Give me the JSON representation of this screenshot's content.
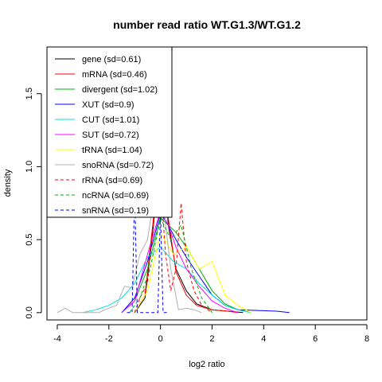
{
  "chart_data": {
    "type": "line",
    "title": "number read ratio WT.G1.3/WT.G1.2",
    "xlabel": "log2 ratio",
    "ylabel": "density",
    "xlim": [
      -4.4,
      8.0
    ],
    "ylim": [
      -0.05,
      1.82
    ],
    "x_ticks": [
      "-4",
      "-2",
      "0",
      "2",
      "4",
      "6",
      "8"
    ],
    "y_ticks": [
      "0.0",
      "0.5",
      "1.0",
      "1.5"
    ],
    "legend_position": "top-left",
    "series": [
      {
        "name": "gene (sd=0.61)",
        "color": "#000000",
        "dashed": false,
        "x": [
          -1.0,
          -0.6,
          -0.3,
          -0.1,
          0.1,
          0.3,
          0.6,
          1.0,
          1.4,
          2.0,
          2.6,
          3.2
        ],
        "y": [
          0.0,
          0.1,
          0.55,
          0.9,
          1.15,
          0.6,
          0.3,
          0.15,
          0.06,
          0.02,
          0.01,
          0.0
        ]
      },
      {
        "name": "mRNA (sd=0.46)",
        "color": "#ff0000",
        "dashed": false,
        "x": [
          -1.0,
          -0.6,
          -0.3,
          -0.1,
          0.1,
          0.3,
          0.6,
          1.0,
          1.4,
          2.0,
          2.6,
          3.0
        ],
        "y": [
          0.0,
          0.12,
          0.6,
          0.95,
          1.2,
          0.65,
          0.28,
          0.12,
          0.05,
          0.02,
          0.01,
          0.0
        ]
      },
      {
        "name": "divergent (sd=1.02)",
        "color": "#00b000",
        "dashed": false,
        "x": [
          -1.5,
          -1.0,
          -0.5,
          0.0,
          0.3,
          0.6,
          1.0,
          1.5,
          2.0,
          2.5,
          3.0,
          3.5
        ],
        "y": [
          0.0,
          0.08,
          0.3,
          0.65,
          0.6,
          0.55,
          0.45,
          0.3,
          0.15,
          0.06,
          0.02,
          0.0
        ]
      },
      {
        "name": "XUT (sd=0.9)",
        "color": "#0000ff",
        "dashed": false,
        "x": [
          -1.5,
          -1.0,
          -0.5,
          0.0,
          0.3,
          0.6,
          1.0,
          1.5,
          2.0,
          2.5,
          3.0,
          4.5,
          5.0
        ],
        "y": [
          0.0,
          0.1,
          0.35,
          0.68,
          0.6,
          0.5,
          0.38,
          0.25,
          0.12,
          0.05,
          0.02,
          0.01,
          0.0
        ]
      },
      {
        "name": "CUT (sd=1.01)",
        "color": "#00e0e0",
        "dashed": false,
        "x": [
          -3.0,
          -2.5,
          -2.0,
          -1.5,
          -1.0,
          -0.5,
          0.0,
          0.5,
          1.0,
          1.5,
          2.0,
          2.5,
          3.0,
          3.5
        ],
        "y": [
          0.0,
          0.02,
          0.05,
          0.1,
          0.2,
          0.38,
          0.45,
          0.35,
          0.3,
          0.2,
          0.12,
          0.05,
          0.02,
          0.0
        ]
      },
      {
        "name": "SUT (sd=0.72)",
        "color": "#ff00ff",
        "dashed": false,
        "x": [
          -1.5,
          -1.0,
          -0.5,
          0.0,
          0.3,
          0.6,
          1.0,
          1.5,
          2.0,
          2.5,
          3.0
        ],
        "y": [
          0.0,
          0.08,
          0.4,
          0.7,
          0.6,
          0.45,
          0.3,
          0.18,
          0.08,
          0.03,
          0.0
        ]
      },
      {
        "name": "tRNA (sd=1.04)",
        "color": "#ffff00",
        "dashed": false,
        "x": [
          -1.0,
          -0.5,
          0.0,
          0.5,
          1.0,
          1.5,
          2.0,
          2.5,
          3.0,
          3.5
        ],
        "y": [
          0.0,
          0.15,
          0.55,
          0.4,
          0.45,
          0.3,
          0.35,
          0.12,
          0.05,
          0.0
        ]
      },
      {
        "name": "snoRNA (sd=0.72)",
        "color": "#b0b0b0",
        "dashed": false,
        "x": [
          -4.0,
          -3.7,
          -3.4,
          -3.0,
          -2.7,
          -2.4,
          -2.0,
          -1.7,
          -1.4,
          -1.1,
          -0.8,
          -0.5,
          -0.2,
          0.1,
          0.4,
          0.7,
          1.0,
          1.3,
          1.6
        ],
        "y": [
          0.0,
          0.03,
          0.0,
          0.0,
          0.0,
          0.0,
          0.03,
          0.05,
          0.18,
          0.17,
          0.4,
          0.5,
          0.85,
          0.75,
          0.3,
          0.02,
          0.03,
          0.02,
          0.0
        ]
      },
      {
        "name": "rRNA (sd=0.69)",
        "color": "#ff0000",
        "dashed": true,
        "x": [
          -1.0,
          -0.8,
          -0.5,
          -0.2,
          0.0,
          0.2,
          0.4,
          0.6,
          0.8,
          1.0,
          1.3,
          1.6,
          2.0
        ],
        "y": [
          0.0,
          0.1,
          0.2,
          0.75,
          0.9,
          0.4,
          0.15,
          0.3,
          0.75,
          0.35,
          0.15,
          0.05,
          0.0
        ]
      },
      {
        "name": "ncRNA (sd=0.69)",
        "color": "#00b000",
        "dashed": true,
        "x": [
          -1.2,
          -0.8,
          -0.4,
          0.0,
          0.4,
          0.8,
          1.2,
          1.6,
          2.0
        ],
        "y": [
          0.0,
          0.1,
          0.3,
          0.65,
          0.5,
          0.6,
          0.3,
          0.1,
          0.0
        ]
      },
      {
        "name": "snRNA (sd=0.19)",
        "color": "#0000ff",
        "dashed": true,
        "x": [
          -1.3,
          -1.1,
          -1.0,
          -0.9,
          -0.1,
          0.0,
          0.1,
          0.3
        ],
        "y": [
          0.0,
          0.0,
          0.85,
          0.0,
          0.0,
          0.7,
          0.0,
          0.0
        ]
      }
    ]
  }
}
